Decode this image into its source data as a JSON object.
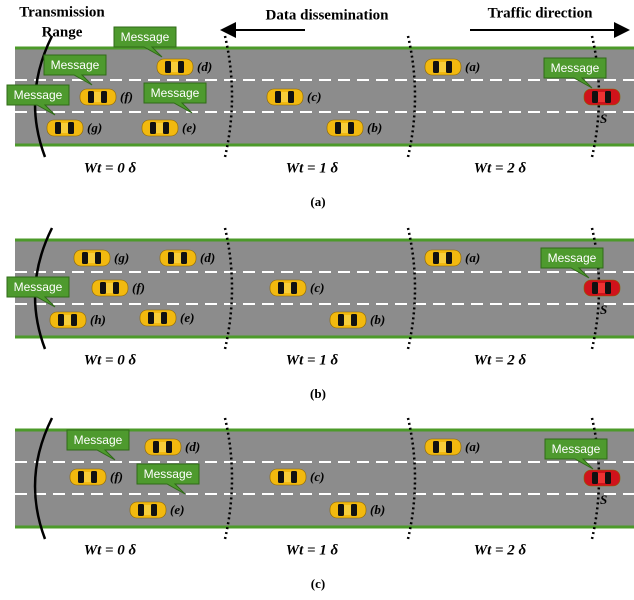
{
  "header": {
    "transmission_range": [
      "Transmission",
      "Range"
    ],
    "data_dissemination": "Data dissemination",
    "traffic_direction": "Traffic direction"
  },
  "panels": [
    {
      "caption": "(a)",
      "zones": [
        "Wt = 0 δ",
        "Wt = 1 δ",
        "Wt = 2 δ"
      ],
      "source": "S",
      "cars": [
        "(a)",
        "(b)",
        "(c)",
        "(d)",
        "(e)",
        "(f)",
        "(g)"
      ],
      "messages": [
        "Message",
        "Message",
        "Message",
        "Message",
        "Message"
      ]
    },
    {
      "caption": "(b)",
      "zones": [
        "Wt = 0 δ",
        "Wt = 1 δ",
        "Wt = 2 δ"
      ],
      "source": "S",
      "cars": [
        "(a)",
        "(b)",
        "(c)",
        "(d)",
        "(e)",
        "(f)",
        "(g)",
        "(h)"
      ],
      "messages": [
        "Message",
        "Message"
      ]
    },
    {
      "caption": "(c)",
      "zones": [
        "Wt = 0 δ",
        "Wt = 1 δ",
        "Wt = 2 δ"
      ],
      "source": "S",
      "cars": [
        "(a)",
        "(b)",
        "(c)",
        "(d)",
        "(e)",
        "(f)"
      ],
      "messages": [
        "Message",
        "Message",
        "Message"
      ]
    }
  ]
}
